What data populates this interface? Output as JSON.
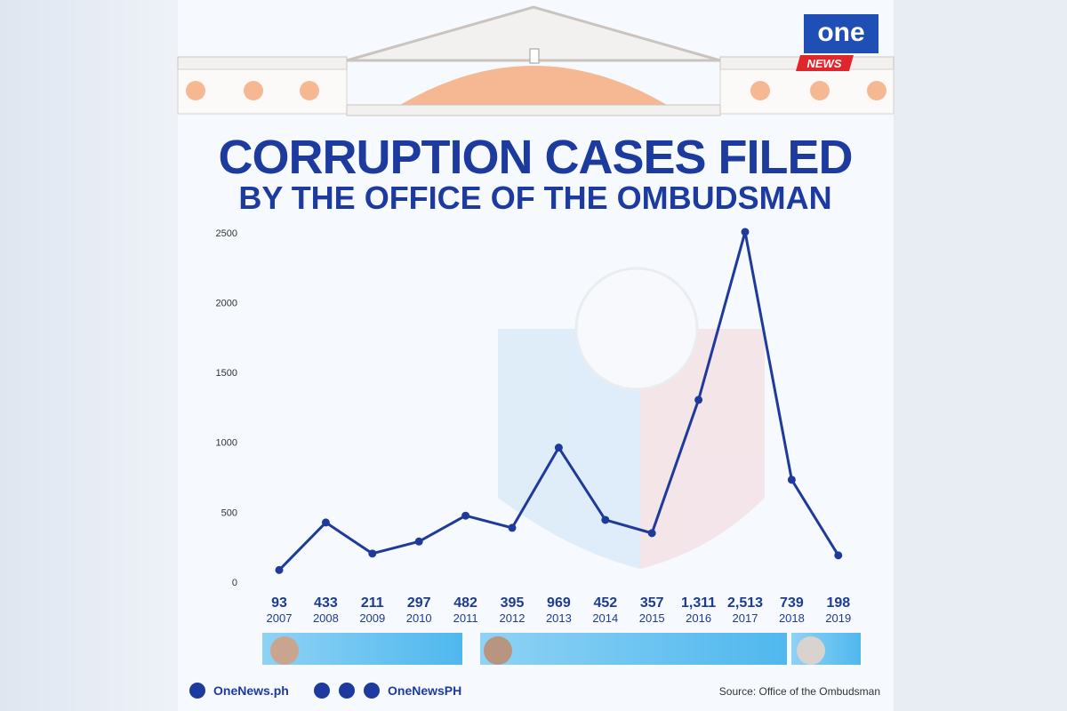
{
  "chart_data": {
    "type": "line",
    "title": "CORRUPTION CASES FILED",
    "subtitle": "BY THE OFFICE OF THE OMBUDSMAN",
    "categories": [
      "2007",
      "2008",
      "2009",
      "2010",
      "2011",
      "2012",
      "2013",
      "2014",
      "2015",
      "2016",
      "2017",
      "2018",
      "2019"
    ],
    "values": [
      93,
      433,
      211,
      297,
      482,
      395,
      969,
      452,
      357,
      1311,
      2513,
      739,
      198
    ],
    "value_labels": [
      "93",
      "433",
      "211",
      "297",
      "482",
      "395",
      "969",
      "452",
      "357",
      "1,311",
      "2,513",
      "739",
      "198"
    ],
    "color": "#1f3a9a",
    "ylim": [
      0,
      2500
    ],
    "yticks": [
      0,
      500,
      1000,
      1500,
      2000,
      2500
    ],
    "source": "Source: Office of the Ombudsman"
  },
  "branding": {
    "logo_top": "one",
    "logo_bottom": "NEWS",
    "website": "OneNews.ph",
    "social": "OneNewsPH"
  }
}
